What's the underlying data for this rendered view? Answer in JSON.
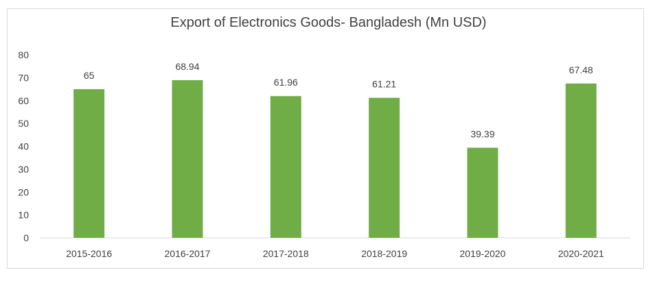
{
  "chart_data": {
    "type": "bar",
    "title": "Export of Electronics Goods- Bangladesh (Mn USD)",
    "xlabel": "",
    "ylabel": "",
    "categories": [
      "2015-2016",
      "2016-2017",
      "2017-2018",
      "2018-2019",
      "2019-2020",
      "2020-2021"
    ],
    "values": [
      65,
      68.94,
      61.96,
      61.21,
      39.39,
      67.48
    ],
    "data_labels": [
      "65",
      "68.94",
      "61.96",
      "61.21",
      "39.39",
      "67.48"
    ],
    "ylim": [
      0,
      80
    ],
    "yticks": [
      0,
      10,
      20,
      30,
      40,
      50,
      60,
      70,
      80
    ],
    "grid": false,
    "legend": "none",
    "bar_color": "#70ad47"
  }
}
